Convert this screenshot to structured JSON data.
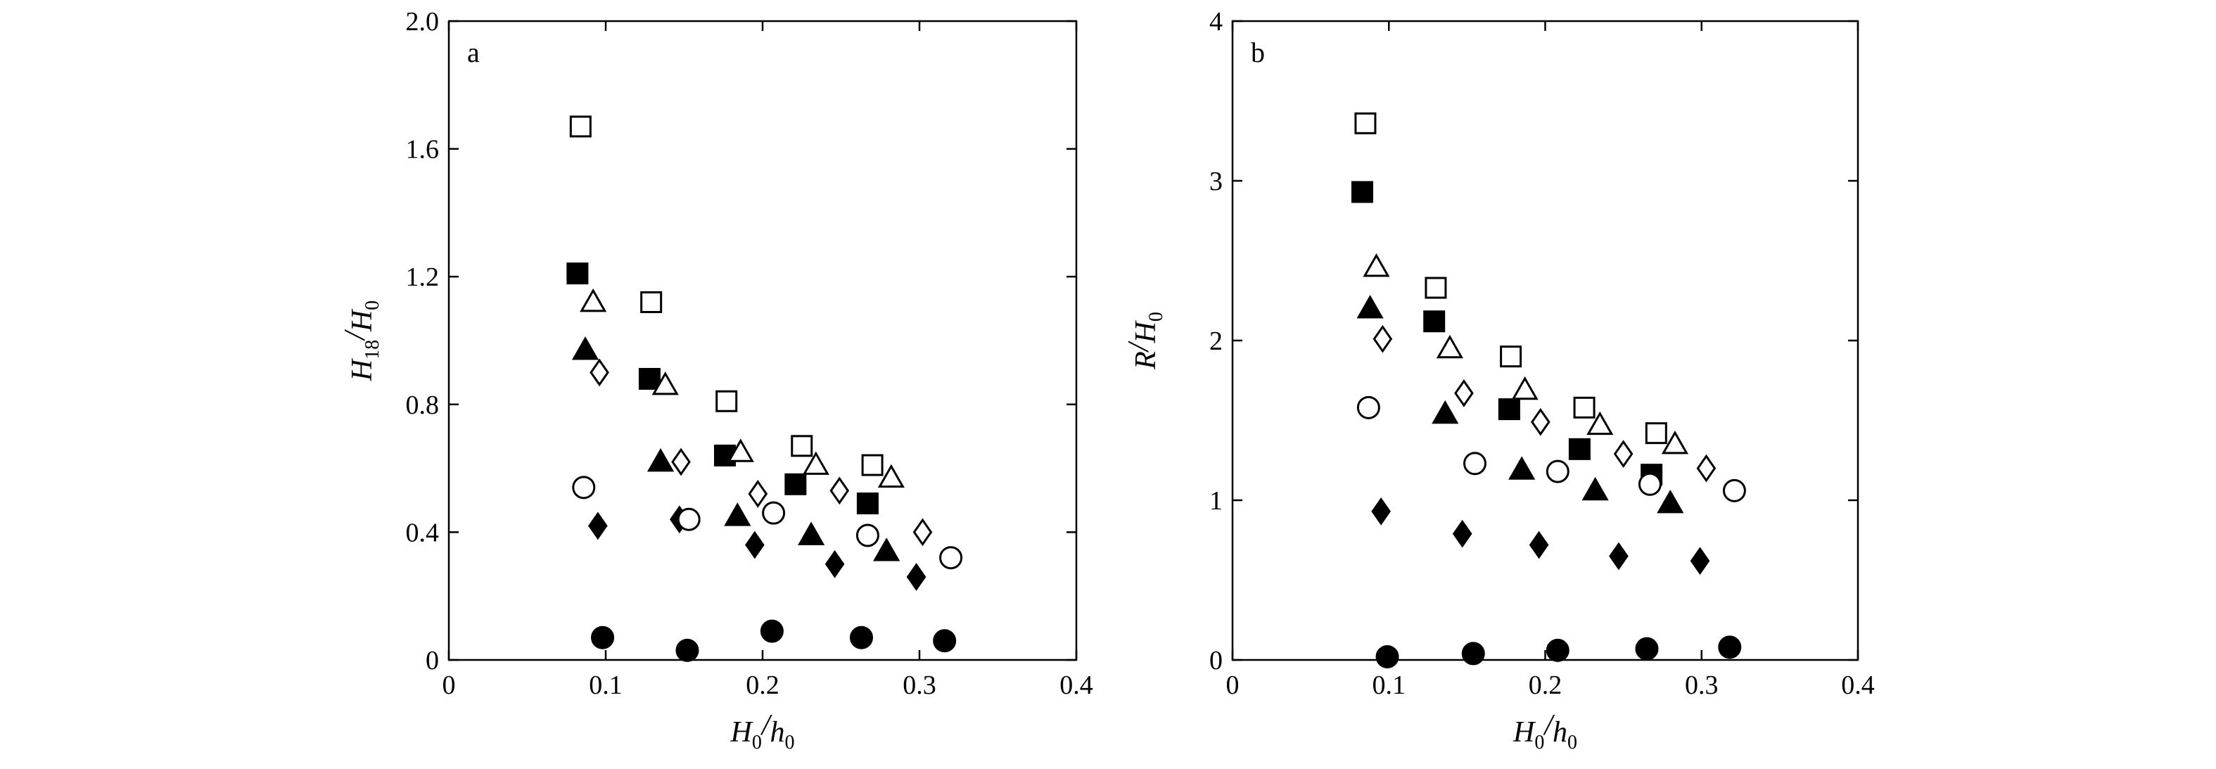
{
  "chart_data": [
    {
      "type": "scatter",
      "panel_label": "a",
      "xlabel": {
        "main": "H",
        "sub": "0",
        "slash": "/",
        "main2": "h",
        "sub2": "0"
      },
      "ylabel": {
        "main": "H",
        "sub": "18",
        "slash": "/",
        "main2": "H",
        "sub2": "0"
      },
      "xlim": [
        0,
        0.4
      ],
      "ylim": [
        0,
        2.0
      ],
      "xticks": [
        0,
        0.1,
        0.2,
        0.3,
        0.4
      ],
      "xtick_labels": [
        "0",
        "0.1",
        "0.2",
        "0.3",
        "0.4"
      ],
      "yticks": [
        0,
        0.4,
        0.8,
        1.2,
        1.6,
        2.0
      ],
      "ytick_labels": [
        "0",
        "0.4",
        "0.8",
        "1.2",
        "1.6",
        "2.0"
      ],
      "grid": false,
      "series": [
        {
          "marker": "square-open",
          "points": [
            [
              0.084,
              1.67
            ],
            [
              0.129,
              1.12
            ],
            [
              0.177,
              0.81
            ],
            [
              0.225,
              0.67
            ],
            [
              0.27,
              0.61
            ]
          ]
        },
        {
          "marker": "square-filled",
          "points": [
            [
              0.082,
              1.21
            ],
            [
              0.128,
              0.88
            ],
            [
              0.176,
              0.64
            ],
            [
              0.221,
              0.55
            ],
            [
              0.267,
              0.49
            ]
          ]
        },
        {
          "marker": "triangle-open",
          "points": [
            [
              0.092,
              1.12
            ],
            [
              0.138,
              0.86
            ],
            [
              0.186,
              0.65
            ],
            [
              0.234,
              0.61
            ],
            [
              0.282,
              0.57
            ]
          ]
        },
        {
          "marker": "triangle-filled",
          "points": [
            [
              0.087,
              0.97
            ],
            [
              0.135,
              0.62
            ],
            [
              0.184,
              0.45
            ],
            [
              0.231,
              0.39
            ],
            [
              0.279,
              0.34
            ]
          ]
        },
        {
          "marker": "diamond-open",
          "points": [
            [
              0.096,
              0.9
            ],
            [
              0.148,
              0.62
            ],
            [
              0.197,
              0.52
            ],
            [
              0.249,
              0.53
            ],
            [
              0.302,
              0.4
            ]
          ]
        },
        {
          "marker": "diamond-filled",
          "points": [
            [
              0.095,
              0.42
            ],
            [
              0.147,
              0.44
            ],
            [
              0.195,
              0.36
            ],
            [
              0.246,
              0.3
            ],
            [
              0.298,
              0.26
            ]
          ]
        },
        {
          "marker": "circle-open",
          "points": [
            [
              0.086,
              0.54
            ],
            [
              0.153,
              0.44
            ],
            [
              0.207,
              0.46
            ],
            [
              0.267,
              0.39
            ],
            [
              0.32,
              0.32
            ]
          ]
        },
        {
          "marker": "circle-filled",
          "points": [
            [
              0.098,
              0.07
            ],
            [
              0.152,
              0.03
            ],
            [
              0.206,
              0.09
            ],
            [
              0.263,
              0.07
            ],
            [
              0.316,
              0.06
            ]
          ]
        }
      ]
    },
    {
      "type": "scatter",
      "panel_label": "b",
      "xlabel": {
        "main": "H",
        "sub": "0",
        "slash": "/",
        "main2": "h",
        "sub2": "0"
      },
      "ylabel": {
        "main": "R",
        "sub": "",
        "slash": "/",
        "main2": "H",
        "sub2": "0"
      },
      "xlim": [
        0,
        0.4
      ],
      "ylim": [
        0,
        4
      ],
      "xticks": [
        0,
        0.1,
        0.2,
        0.3,
        0.4
      ],
      "xtick_labels": [
        "0",
        "0.1",
        "0.2",
        "0.3",
        "0.4"
      ],
      "yticks": [
        0,
        1,
        2,
        3,
        4
      ],
      "ytick_labels": [
        "0",
        "1",
        "2",
        "3",
        "4"
      ],
      "grid": false,
      "series": [
        {
          "marker": "square-open",
          "points": [
            [
              0.085,
              3.36
            ],
            [
              0.13,
              2.33
            ],
            [
              0.178,
              1.9
            ],
            [
              0.225,
              1.58
            ],
            [
              0.271,
              1.42
            ]
          ]
        },
        {
          "marker": "square-filled",
          "points": [
            [
              0.083,
              2.93
            ],
            [
              0.129,
              2.12
            ],
            [
              0.177,
              1.57
            ],
            [
              0.222,
              1.32
            ],
            [
              0.268,
              1.16
            ]
          ]
        },
        {
          "marker": "triangle-open",
          "points": [
            [
              0.092,
              2.46
            ],
            [
              0.139,
              1.95
            ],
            [
              0.187,
              1.69
            ],
            [
              0.235,
              1.47
            ],
            [
              0.283,
              1.35
            ]
          ]
        },
        {
          "marker": "triangle-filled",
          "points": [
            [
              0.088,
              2.2
            ],
            [
              0.136,
              1.54
            ],
            [
              0.185,
              1.19
            ],
            [
              0.232,
              1.06
            ],
            [
              0.28,
              0.98
            ]
          ]
        },
        {
          "marker": "diamond-open",
          "points": [
            [
              0.096,
              2.01
            ],
            [
              0.148,
              1.67
            ],
            [
              0.197,
              1.49
            ],
            [
              0.25,
              1.29
            ],
            [
              0.303,
              1.2
            ]
          ]
        },
        {
          "marker": "diamond-filled",
          "points": [
            [
              0.095,
              0.93
            ],
            [
              0.147,
              0.79
            ],
            [
              0.196,
              0.72
            ],
            [
              0.247,
              0.65
            ],
            [
              0.299,
              0.62
            ]
          ]
        },
        {
          "marker": "circle-open",
          "points": [
            [
              0.087,
              1.58
            ],
            [
              0.155,
              1.23
            ],
            [
              0.208,
              1.18
            ],
            [
              0.267,
              1.1
            ],
            [
              0.321,
              1.06
            ]
          ]
        },
        {
          "marker": "circle-filled",
          "points": [
            [
              0.099,
              0.02
            ],
            [
              0.154,
              0.04
            ],
            [
              0.208,
              0.06
            ],
            [
              0.265,
              0.07
            ],
            [
              0.318,
              0.08
            ]
          ]
        }
      ]
    }
  ]
}
